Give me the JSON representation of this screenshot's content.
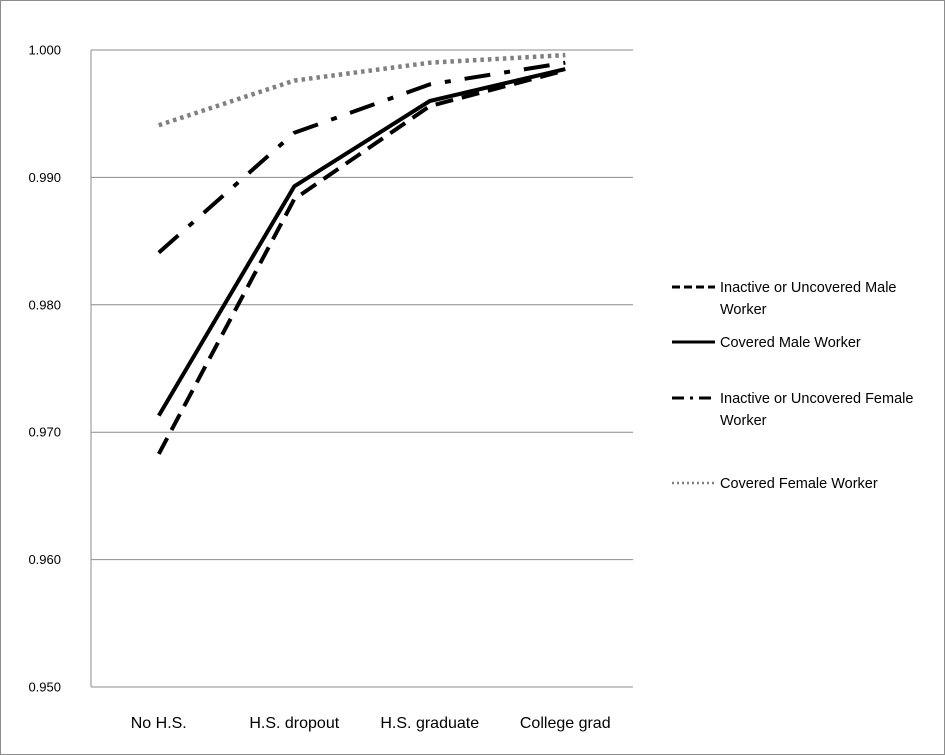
{
  "chart_data": {
    "type": "line",
    "title": "",
    "xlabel": "",
    "ylabel": "",
    "categories": [
      "No H.S.",
      "H.S. dropout",
      "H.S. graduate",
      "College grad"
    ],
    "ylim": [
      0.95,
      1.0
    ],
    "yticks": [
      "0.950",
      "0.960",
      "0.970",
      "0.980",
      "0.990",
      "1.000"
    ],
    "grid": "horizontal",
    "legend_position": "right",
    "series": [
      {
        "name": "Inactive or Uncovered Male Worker",
        "legend_lines": [
          "Inactive or Uncovered Male",
          "Worker"
        ],
        "style": "dashed",
        "values": [
          0.9683,
          0.9883,
          0.9956,
          0.9984
        ]
      },
      {
        "name": "Covered Male Worker",
        "legend_lines": [
          "Covered Male Worker"
        ],
        "style": "solid",
        "values": [
          0.9713,
          0.9893,
          0.996,
          0.9985
        ]
      },
      {
        "name": "Inactive or Uncovered Female Worker",
        "legend_lines": [
          "Inactive or Uncovered Female",
          "Worker"
        ],
        "style": "dash-dot",
        "values": [
          0.9841,
          0.9935,
          0.9973,
          0.999
        ]
      },
      {
        "name": "Covered Female Worker",
        "legend_lines": [
          "Covered Female Worker"
        ],
        "style": "dotted",
        "values": [
          0.9941,
          0.9976,
          0.999,
          0.9996
        ]
      }
    ]
  }
}
